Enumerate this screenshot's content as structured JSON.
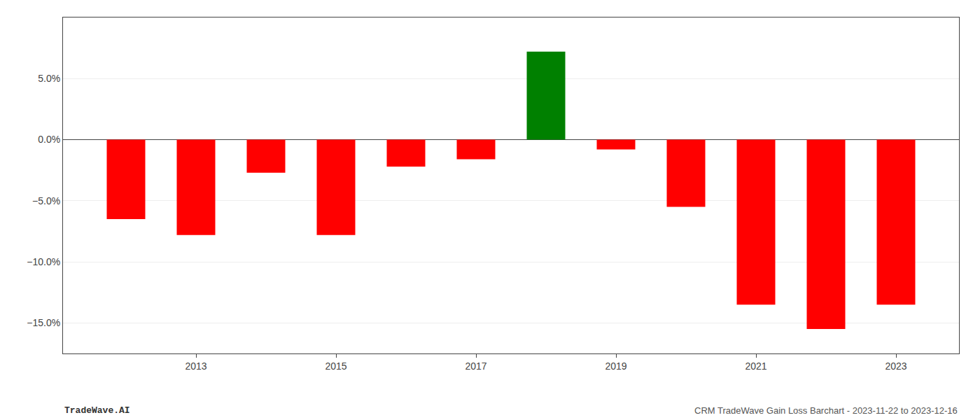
{
  "chart_data": {
    "type": "bar",
    "x": [
      2012,
      2013,
      2014,
      2015,
      2016,
      2017,
      2018,
      2019,
      2020,
      2021,
      2022,
      2023
    ],
    "values": [
      -0.065,
      -0.078,
      -0.027,
      -0.078,
      -0.022,
      -0.016,
      0.072,
      -0.008,
      -0.055,
      -0.135,
      -0.155,
      -0.135
    ],
    "colors": [
      "#ff0000",
      "#ff0000",
      "#ff0000",
      "#ff0000",
      "#ff0000",
      "#ff0000",
      "#008000",
      "#ff0000",
      "#ff0000",
      "#ff0000",
      "#ff0000",
      "#ff0000"
    ],
    "xlim": [
      2011.1,
      2023.9
    ],
    "xticks": [
      2013,
      2015,
      2017,
      2019,
      2021,
      2023
    ],
    "ylim": [
      -0.175,
      0.1
    ],
    "yticks": [
      {
        "value": -0.15,
        "label": "−15.0%"
      },
      {
        "value": -0.1,
        "label": "−10.0%"
      },
      {
        "value": -0.05,
        "label": "−5.0%"
      },
      {
        "value": 0.0,
        "label": "0.0%"
      },
      {
        "value": 0.05,
        "label": "5.0%"
      }
    ],
    "grid": true,
    "annotations": [
      "TradeWave.AI",
      "CRM TradeWave Gain Loss Barchart - 2023-11-22 to 2023-12-16"
    ]
  }
}
